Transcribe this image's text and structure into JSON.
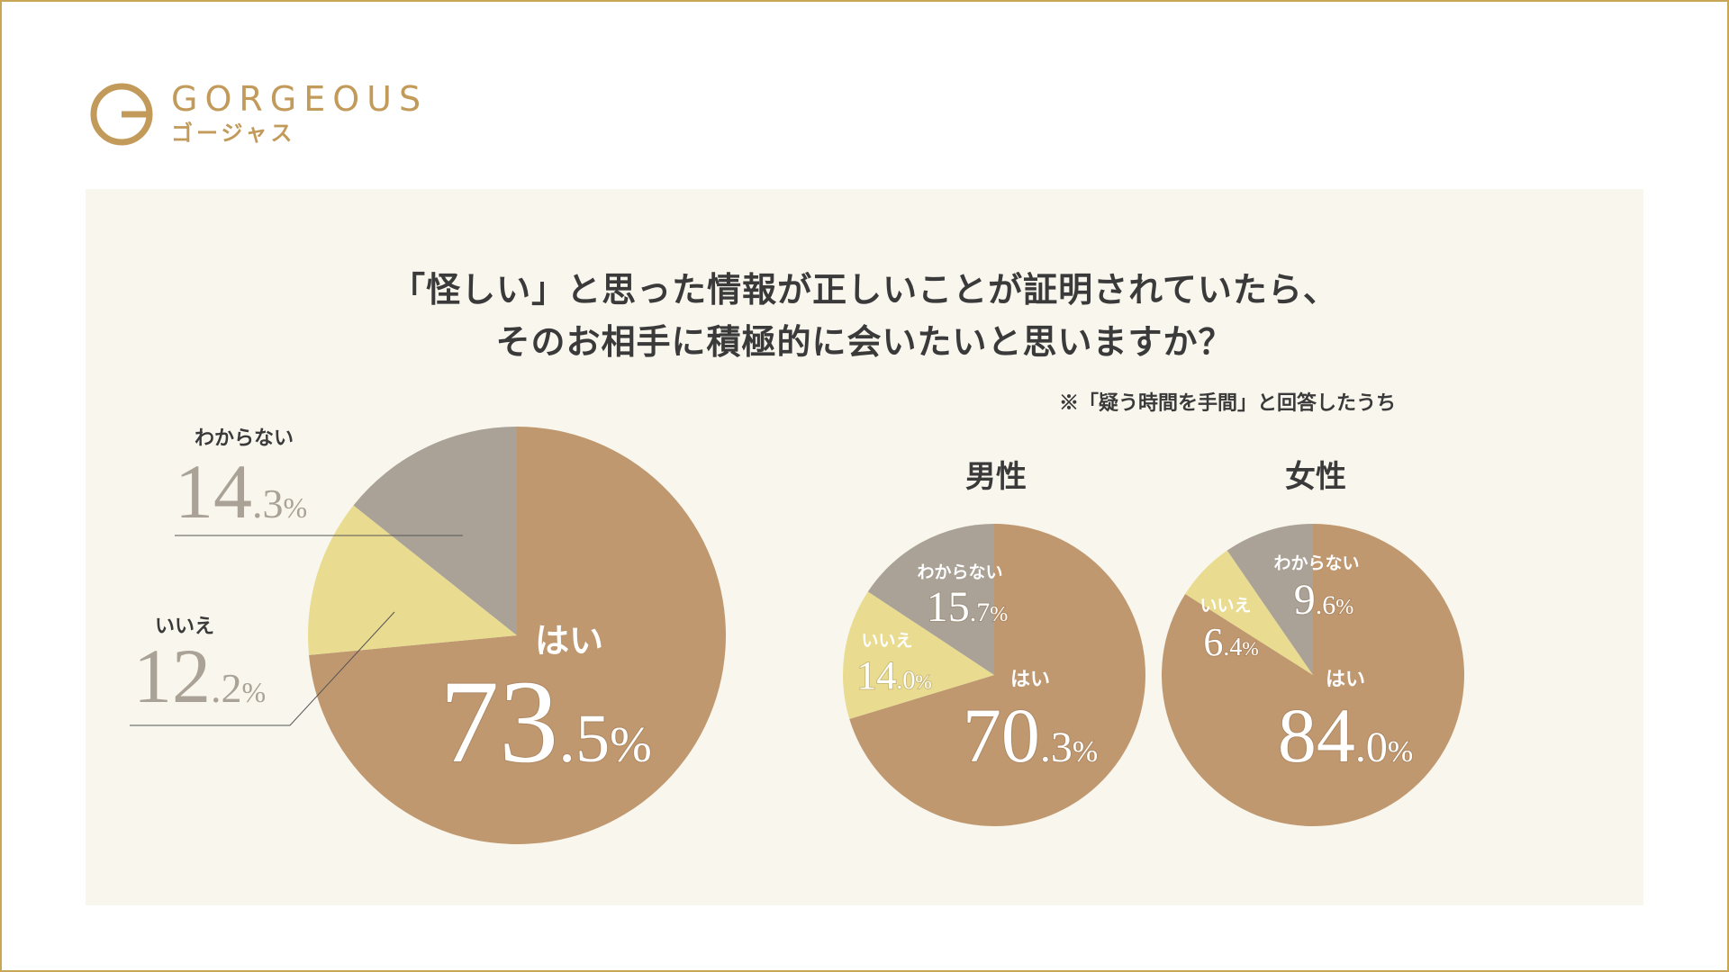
{
  "brand": {
    "name": "GORGEOUS",
    "kana": "ゴージャス"
  },
  "title": {
    "line1": "「怪しい」と思った情報が正しいことが証明されていたら、",
    "line2": "そのお相手に積極的に会いたいと思いますか？",
    "note": "※「疑う時間を手間」と回答したうち"
  },
  "colors": {
    "yes": "#c09870",
    "no": "#e9dc90",
    "unknown": "#aaa296",
    "frame": "#c7a655",
    "panel": "#f8f6ed"
  },
  "chart_data": [
    {
      "type": "pie",
      "title": "",
      "slices": [
        {
          "label": "はい",
          "value": 73.5,
          "int": "73",
          "dec": ".5",
          "unit": "%"
        },
        {
          "label": "いいえ",
          "value": 12.2,
          "int": "12",
          "dec": ".2",
          "unit": "%"
        },
        {
          "label": "わからない",
          "value": 14.3,
          "int": "14",
          "dec": ".3",
          "unit": "%"
        }
      ]
    },
    {
      "type": "pie",
      "title": "男性",
      "slices": [
        {
          "label": "はい",
          "value": 70.3,
          "int": "70",
          "dec": ".3",
          "unit": "%"
        },
        {
          "label": "いいえ",
          "value": 14.0,
          "int": "14",
          "dec": ".0",
          "unit": "%"
        },
        {
          "label": "わからない",
          "value": 15.7,
          "int": "15",
          "dec": ".7",
          "unit": "%"
        }
      ]
    },
    {
      "type": "pie",
      "title": "女性",
      "slices": [
        {
          "label": "はい",
          "value": 84.0,
          "int": "84",
          "dec": ".0",
          "unit": "%"
        },
        {
          "label": "いいえ",
          "value": 6.4,
          "int": "6",
          "dec": ".4",
          "unit": "%"
        },
        {
          "label": "わからない",
          "value": 9.6,
          "int": "9",
          "dec": ".6",
          "unit": "%"
        }
      ]
    }
  ]
}
